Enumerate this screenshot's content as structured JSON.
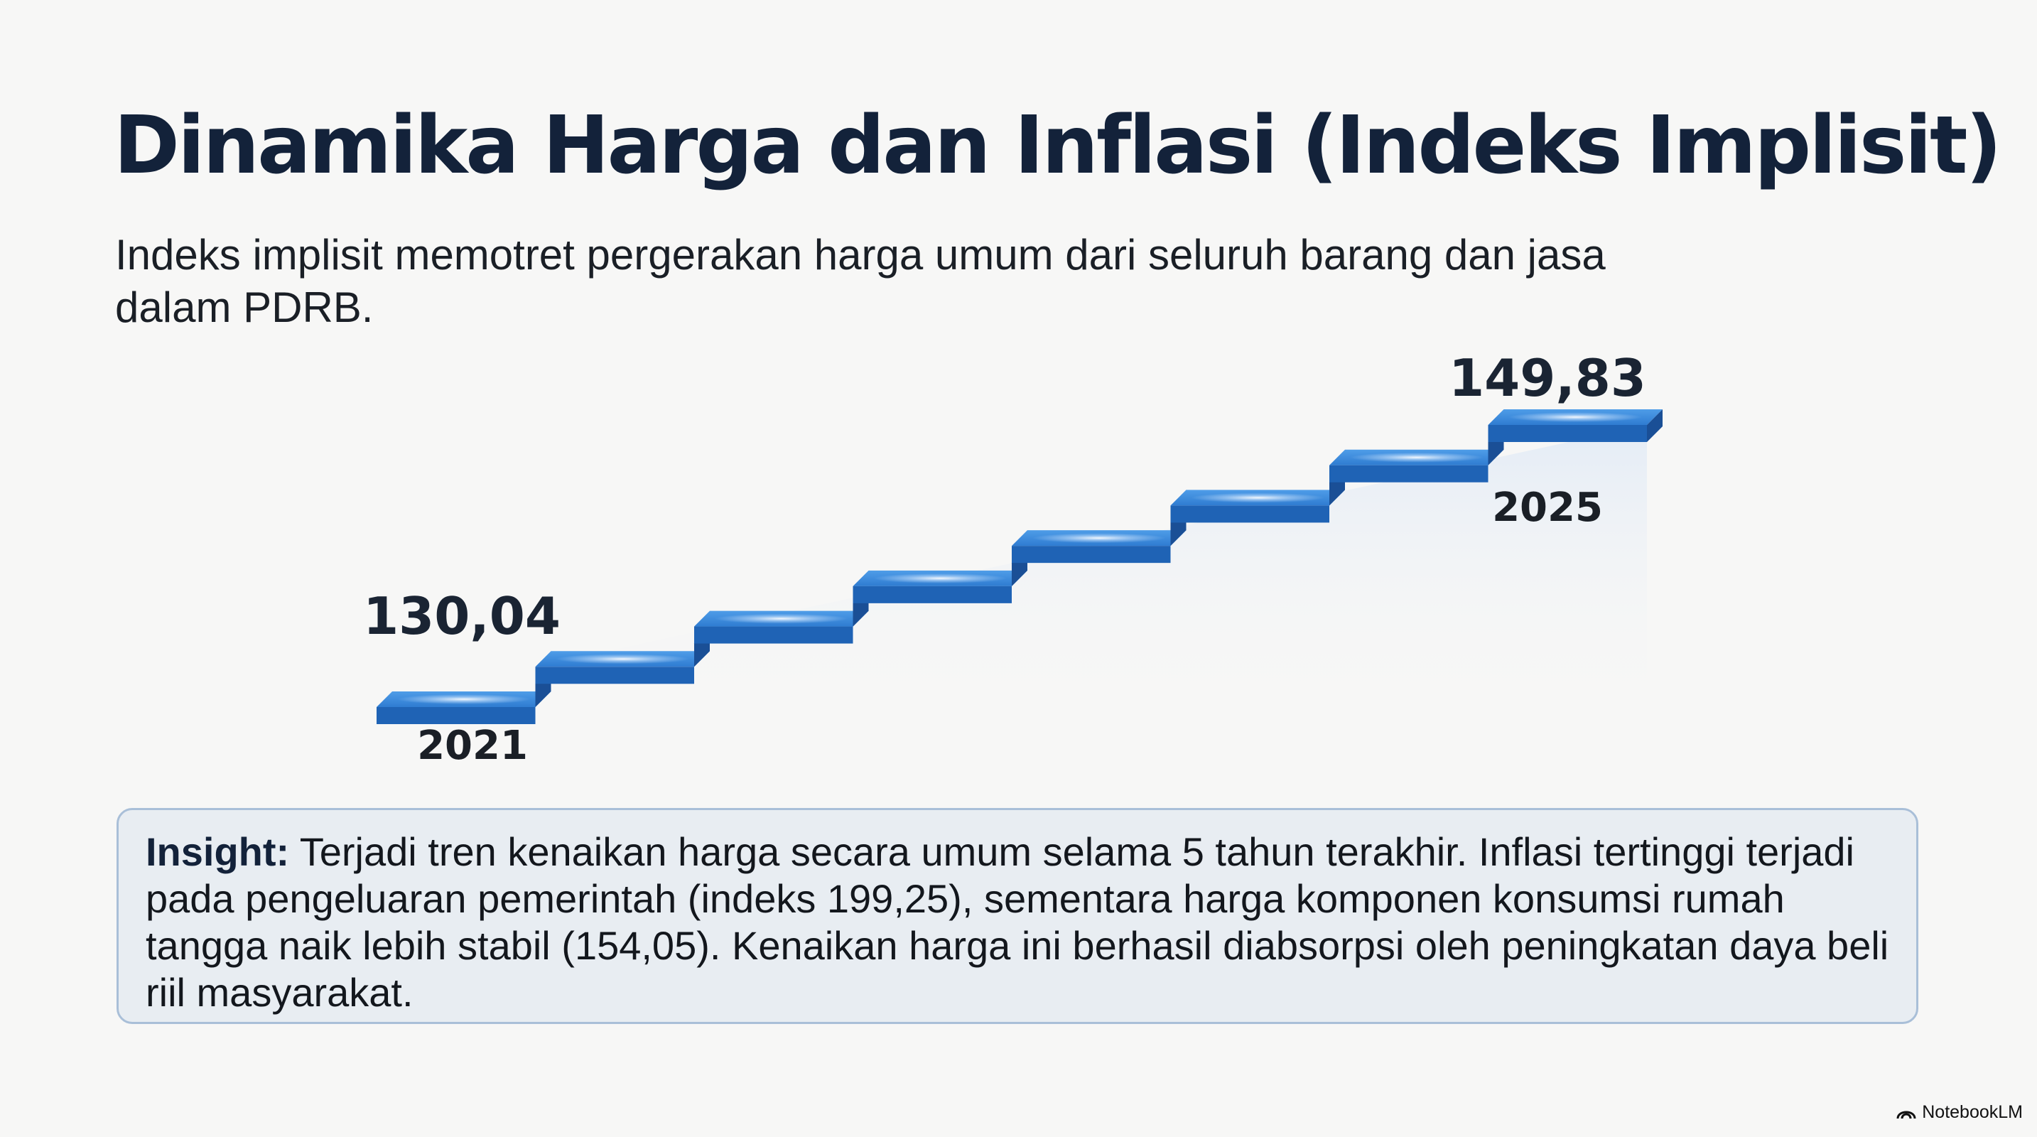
{
  "title": "Dinamika Harga dan Inflasi (Indeks Implisit)",
  "subtitle": "Indeks implisit memotret pergerakan harga umum dari seluruh barang dan jasa dalam PDRB.",
  "chart_data": {
    "type": "line",
    "start": {
      "year": "2021",
      "value_label": "130,04",
      "value": 130.04
    },
    "end": {
      "year": "2025",
      "value_label": "149,83",
      "value": 149.83
    },
    "steps": 8
  },
  "insight": {
    "label": "Insight:",
    "text": " Terjadi tren kenaikan harga secara umum selama 5 tahun terakhir. Inflasi tertinggi terjadi pada pengeluaran pemerintah (indeks 199,25), sementara harga komponen konsumsi rumah tangga naik lebih stabil (154,05). Kenaikan harga ini berhasil diabsorpsi oleh peningkatan daya beli riil masyarakat."
  },
  "branding": {
    "name": "NotebookLM",
    "icon": "notebooklm-logo-icon"
  },
  "colors": {
    "stair_top": "#3e8fe0",
    "stair_front": "#1f63b5",
    "stair_side": "#1a4f96",
    "glow": "#bfe0ff"
  }
}
